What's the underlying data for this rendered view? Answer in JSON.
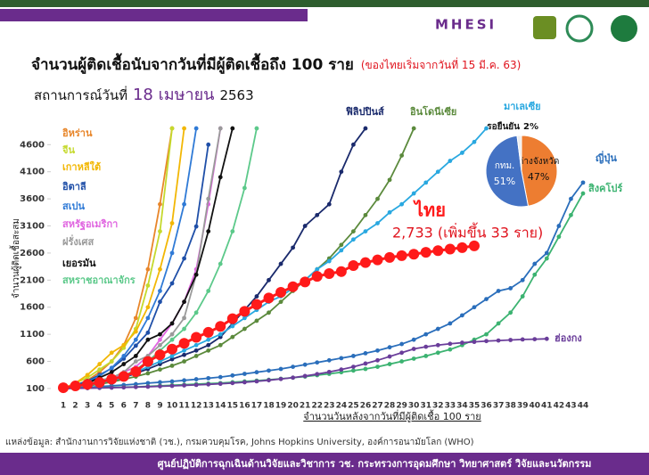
{
  "header": {
    "logo": "MHESI"
  },
  "chart_data": {
    "type": "line",
    "title": "จำนวนผู้ติดเชื้อนับจากวันที่มีผู้ติดเชื้อถึง 100 ราย",
    "title_note": "(ของไทยเริ่มจากวันที่ 15 มี.ค. 63)",
    "subtitle_prefix": "สถานการณ์วันที่",
    "subtitle_date": "18 เมษายน",
    "subtitle_year": "2563",
    "y_label": "จำนวนผู้ติดเชื้อสะสม",
    "x_label": "จำนวนวันหลังจากวันที่มีผู้ติดเชื้อ 100 ราย",
    "annotation": "2,733 (เพิ่มขึ้น 33 ราย)",
    "source": "แหล่งข้อมูล: สำนักงานการวิจัยแห่งชาติ (วช.), กรมควบคุมโรค, Johns Hopkins University, องค์การอนามัยโลก (WHO)",
    "footer": "ศูนย์ปฏิบัติการฉุกเฉินด้านวิจัยและวิชาการ   วช.   กระทรวงการอุดมศึกษา วิทยาศาสตร์ วิจัยและนวัตกรรม",
    "x": [
      1,
      2,
      3,
      4,
      5,
      6,
      7,
      8,
      9,
      10,
      11,
      12,
      13,
      14,
      15,
      16,
      17,
      18,
      19,
      20,
      21,
      22,
      23,
      24,
      25,
      26,
      27,
      28,
      29,
      30,
      31,
      32,
      33,
      34,
      35,
      36,
      37,
      38,
      39,
      40,
      41,
      42,
      43,
      44
    ],
    "xlim": [
      1,
      44
    ],
    "ylim": [
      0,
      5000
    ],
    "yticks": [
      100,
      600,
      1100,
      1600,
      2100,
      2600,
      3100,
      3600,
      4100,
      4600
    ],
    "grid": false,
    "series": [
      {
        "name": "อิหร่าน",
        "color": "#e8862a",
        "values": [
          100,
          150,
          250,
          400,
          600,
          900,
          1400,
          2300,
          3500,
          4900,
          null,
          null,
          null,
          null,
          null,
          null,
          null,
          null,
          null,
          null,
          null,
          null,
          null,
          null,
          null,
          null,
          null,
          null,
          null,
          null,
          null,
          null,
          null,
          null,
          null,
          null,
          null,
          null,
          null,
          null,
          null,
          null,
          null,
          null
        ]
      },
      {
        "name": "จีน",
        "color": "#c5d92d",
        "values": [
          100,
          200,
          300,
          450,
          600,
          850,
          1200,
          2000,
          3000,
          4900,
          null,
          null,
          null,
          null,
          null,
          null,
          null,
          null,
          null,
          null,
          null,
          null,
          null,
          null,
          null,
          null,
          null,
          null,
          null,
          null,
          null,
          null,
          null,
          null,
          null,
          null,
          null,
          null,
          null,
          null,
          null,
          null,
          null,
          null
        ]
      },
      {
        "name": "เกาหลีใต้",
        "color": "#f2b705",
        "values": [
          100,
          200,
          350,
          550,
          760,
          900,
          1150,
          1600,
          2300,
          3150,
          4900,
          null,
          null,
          null,
          null,
          null,
          null,
          null,
          null,
          null,
          null,
          null,
          null,
          null,
          null,
          null,
          null,
          null,
          null,
          null,
          null,
          null,
          null,
          null,
          null,
          null,
          null,
          null,
          null,
          null,
          null,
          null,
          null,
          null
        ]
      },
      {
        "name": "อิตาลี",
        "color": "#1f4fa8",
        "values": [
          100,
          160,
          240,
          350,
          470,
          650,
          890,
          1130,
          1700,
          2040,
          2500,
          3090,
          4600,
          null,
          null,
          null,
          null,
          null,
          null,
          null,
          null,
          null,
          null,
          null,
          null,
          null,
          null,
          null,
          null,
          null,
          null,
          null,
          null,
          null,
          null,
          null,
          null,
          null,
          null,
          null,
          null,
          null,
          null,
          null
        ]
      },
      {
        "name": "สเปน",
        "color": "#2f7ad6",
        "values": [
          100,
          150,
          220,
          330,
          480,
          700,
          1000,
          1400,
          1900,
          2600,
          3500,
          4900,
          null,
          null,
          null,
          null,
          null,
          null,
          null,
          null,
          null,
          null,
          null,
          null,
          null,
          null,
          null,
          null,
          null,
          null,
          null,
          null,
          null,
          null,
          null,
          null,
          null,
          null,
          null,
          null,
          null,
          null,
          null,
          null
        ]
      },
      {
        "name": "สหรัฐอเมริกา",
        "color": "#e065e0",
        "values": [
          100,
          120,
          160,
          210,
          270,
          400,
          500,
          700,
          1000,
          1300,
          1700,
          2300,
          3500,
          4900,
          null,
          null,
          null,
          null,
          null,
          null,
          null,
          null,
          null,
          null,
          null,
          null,
          null,
          null,
          null,
          null,
          null,
          null,
          null,
          null,
          null,
          null,
          null,
          null,
          null,
          null,
          null,
          null,
          null,
          null
        ]
      },
      {
        "name": "ฝรั่งเศส",
        "color": "#9a9a9a",
        "values": [
          100,
          130,
          180,
          250,
          300,
          400,
          600,
          700,
          900,
          1100,
          1400,
          2200,
          3600,
          4900,
          null,
          null,
          null,
          null,
          null,
          null,
          null,
          null,
          null,
          null,
          null,
          null,
          null,
          null,
          null,
          null,
          null,
          null,
          null,
          null,
          null,
          null,
          null,
          null,
          null,
          null,
          null,
          null,
          null,
          null
        ]
      },
      {
        "name": "เยอรมัน",
        "color": "#111111",
        "values": [
          100,
          150,
          200,
          300,
          400,
          550,
          700,
          1000,
          1100,
          1300,
          1700,
          2200,
          3000,
          4000,
          4900,
          null,
          null,
          null,
          null,
          null,
          null,
          null,
          null,
          null,
          null,
          null,
          null,
          null,
          null,
          null,
          null,
          null,
          null,
          null,
          null,
          null,
          null,
          null,
          null,
          null,
          null,
          null,
          null,
          null
        ]
      },
      {
        "name": "สหราชอาณาจักร",
        "color": "#5cc98a",
        "values": [
          100,
          120,
          150,
          200,
          260,
          330,
          450,
          600,
          800,
          1000,
          1200,
          1500,
          1900,
          2400,
          3000,
          3800,
          4900,
          null,
          null,
          null,
          null,
          null,
          null,
          null,
          null,
          null,
          null,
          null,
          null,
          null,
          null,
          null,
          null,
          null,
          null,
          null,
          null,
          null,
          null,
          null,
          null,
          null,
          null,
          null
        ]
      },
      {
        "name": "ฟิลิปปินส์",
        "color": "#1a2a6c",
        "values": [
          100,
          130,
          160,
          200,
          230,
          300,
          380,
          460,
          550,
          640,
          720,
          800,
          900,
          1050,
          1300,
          1550,
          1800,
          2100,
          2400,
          2700,
          3100,
          3300,
          3500,
          4100,
          4600,
          4900,
          null,
          null,
          null,
          null,
          null,
          null,
          null,
          null,
          null,
          null,
          null,
          null,
          null,
          null,
          null,
          null,
          null,
          null
        ]
      },
      {
        "name": "อินโดนีเซีย",
        "color": "#5b8a3c",
        "values": [
          100,
          120,
          150,
          180,
          220,
          270,
          320,
          380,
          450,
          520,
          600,
          700,
          800,
          900,
          1050,
          1200,
          1350,
          1500,
          1700,
          1900,
          2100,
          2300,
          2500,
          2750,
          3000,
          3300,
          3600,
          3950,
          4400,
          4900,
          null,
          null,
          null,
          null,
          null,
          null,
          null,
          null,
          null,
          null,
          null,
          null,
          null,
          null
        ]
      },
      {
        "name": "มาเลเซีย",
        "color": "#29a8e0",
        "values": [
          100,
          130,
          160,
          200,
          250,
          300,
          400,
          500,
          600,
          700,
          800,
          900,
          1000,
          1100,
          1250,
          1400,
          1550,
          1700,
          1800,
          1950,
          2100,
          2300,
          2450,
          2650,
          2850,
          3000,
          3150,
          3350,
          3500,
          3700,
          3900,
          4100,
          4300,
          4450,
          4650,
          4900,
          null,
          null,
          null,
          null,
          null,
          null,
          null,
          null
        ]
      },
      {
        "name": "ญี่ปุ่น",
        "color": "#2a6ebb",
        "values": [
          100,
          110,
          120,
          135,
          150,
          165,
          180,
          200,
          215,
          230,
          250,
          270,
          290,
          310,
          340,
          370,
          400,
          430,
          460,
          500,
          540,
          580,
          620,
          660,
          700,
          750,
          800,
          860,
          920,
          1000,
          1100,
          1200,
          1300,
          1450,
          1600,
          1750,
          1900,
          1950,
          2100,
          2400,
          2600,
          3100,
          3600,
          3900
        ]
      },
      {
        "name": "สิงคโปร์",
        "color": "#3cb371",
        "values": [
          100,
          105,
          110,
          115,
          120,
          125,
          130,
          140,
          150,
          160,
          170,
          180,
          190,
          200,
          215,
          230,
          245,
          260,
          280,
          300,
          320,
          345,
          370,
          400,
          430,
          460,
          500,
          550,
          600,
          650,
          700,
          760,
          820,
          900,
          1000,
          1100,
          1300,
          1500,
          1800,
          2200,
          2500,
          2900,
          3300,
          3700
        ]
      },
      {
        "name": "ฮ่องกง",
        "color": "#6a3d9a",
        "values": [
          100,
          103,
          106,
          110,
          115,
          120,
          126,
          133,
          140,
          148,
          157,
          166,
          176,
          187,
          200,
          215,
          232,
          252,
          275,
          300,
          330,
          365,
          405,
          450,
          500,
          560,
          620,
          690,
          760,
          830,
          870,
          900,
          925,
          945,
          960,
          975,
          985,
          995,
          1005,
          1010,
          1017,
          null,
          null,
          null
        ]
      },
      {
        "name": "ไทย",
        "color": "#ff1a1a",
        "values": [
          114,
          147,
          177,
          212,
          272,
          322,
          411,
          599,
          721,
          827,
          934,
          1045,
          1136,
          1245,
          1388,
          1524,
          1651,
          1771,
          1875,
          1978,
          2067,
          2169,
          2220,
          2258,
          2369,
          2423,
          2473,
          2518,
          2551,
          2579,
          2613,
          2643,
          2672,
          2700,
          2733,
          null,
          null,
          null,
          null,
          null,
          null,
          null,
          null,
          null
        ]
      }
    ],
    "pie": {
      "categories": [
        "ต่างจังหวัด",
        "กทม.",
        "รอยืนยัน"
      ],
      "values": [
        47,
        51,
        2
      ],
      "value_labels": [
        "47%",
        "51%",
        "2%"
      ],
      "colors": [
        "#ed7d31",
        "#4472c4",
        "#eeeeee"
      ]
    }
  }
}
